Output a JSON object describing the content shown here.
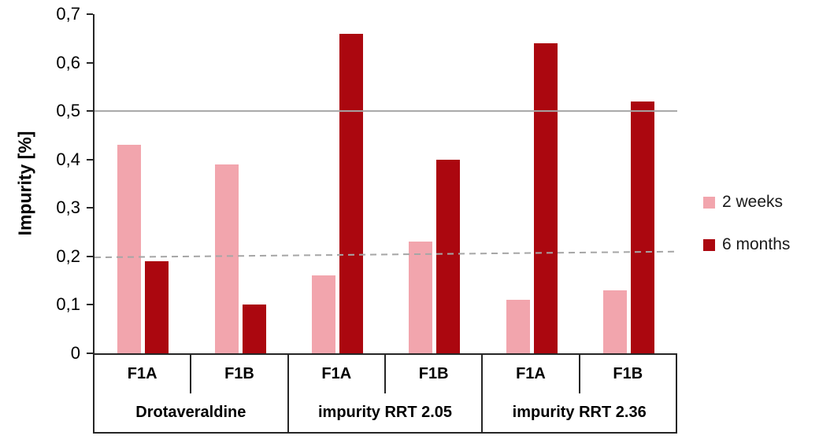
{
  "chart_data": {
    "type": "bar",
    "title": "",
    "xlabel": "",
    "ylabel": "Impurity [%]",
    "ylim": [
      0,
      0.7
    ],
    "ytick_step": 0.1,
    "ytick_labels": [
      "0",
      "0,1",
      "0,2",
      "0,3",
      "0,4",
      "0,5",
      "0,6",
      "0,7"
    ],
    "grid": false,
    "legend_position": "right",
    "groups": [
      {
        "label": "Drotaveraldine",
        "subgroups": [
          "F1A",
          "F1B"
        ]
      },
      {
        "label": "impurity RRT 2.05",
        "subgroups": [
          "F1A",
          "F1B"
        ]
      },
      {
        "label": "impurity RRT 2.36",
        "subgroups": [
          "F1A",
          "F1B"
        ]
      }
    ],
    "categories": [
      "F1A",
      "F1B",
      "F1A",
      "F1B",
      "F1A",
      "F1B"
    ],
    "series": [
      {
        "name": "2 weeks",
        "color": "#F2A5AD",
        "values": [
          0.43,
          0.39,
          0.16,
          0.23,
          0.11,
          0.13
        ]
      },
      {
        "name": "6 months",
        "color": "#AB070F",
        "values": [
          0.19,
          0.1,
          0.66,
          0.4,
          0.64,
          0.52
        ]
      }
    ],
    "reference_lines": [
      {
        "value": 0.5,
        "value_end": 0.5,
        "style": "solid",
        "color": "#A6A6A6"
      },
      {
        "value": 0.198,
        "value_end": 0.21,
        "style": "dashed",
        "color": "#A6A6A6"
      }
    ]
  }
}
